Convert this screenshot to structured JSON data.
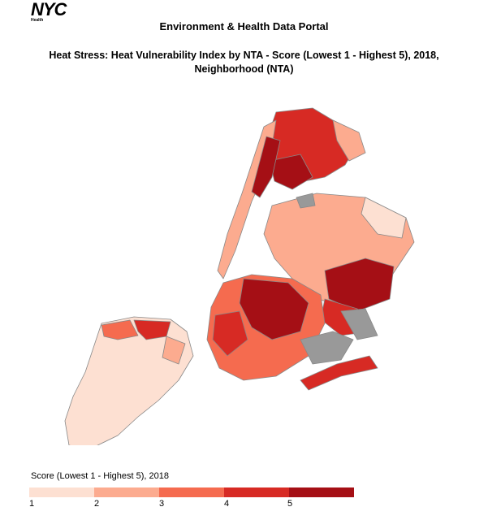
{
  "brand": {
    "name": "NYC",
    "sub": "Health"
  },
  "portal_title": "Environment & Health Data Portal",
  "map_title": "Heat Stress: Heat Vulnerability Index by NTA - Score (Lowest 1 - Highest 5), 2018, Neighborhood (NTA)",
  "legend": {
    "title": "Score (Lowest 1 - Highest 5), 2018",
    "ticks": [
      "1",
      "2",
      "3",
      "4",
      "5"
    ],
    "colors": [
      "#fde0d2",
      "#fcab8f",
      "#f56b4f",
      "#d72a24",
      "#a50f15"
    ],
    "no_data_color": "#999999"
  }
}
